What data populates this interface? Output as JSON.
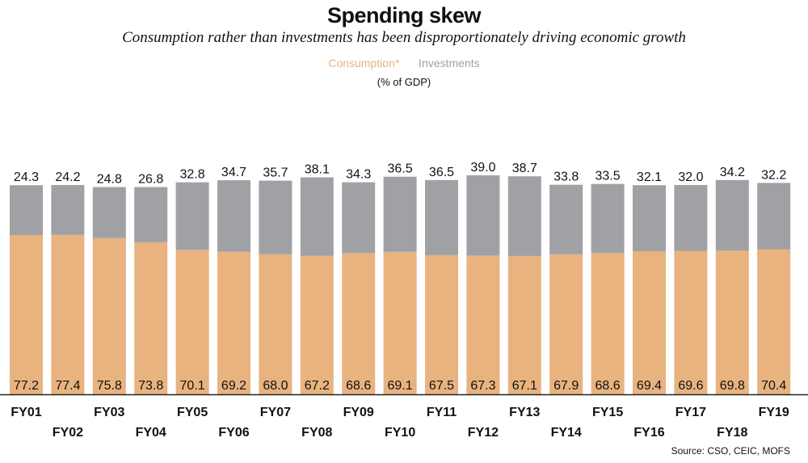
{
  "chart_data": {
    "type": "bar",
    "stacked": true,
    "title": "Spending skew",
    "subtitle": "Consumption rather than investments has been disproportionately driving economic growth",
    "unit_label": "(% of GDP)",
    "source": "Source: CSO, CEIC, MOFS",
    "legend_position": "top-center",
    "categories": [
      "FY01",
      "FY02",
      "FY03",
      "FY04",
      "FY05",
      "FY06",
      "FY07",
      "FY08",
      "FY09",
      "FY10",
      "FY11",
      "FY12",
      "FY13",
      "FY14",
      "FY15",
      "FY16",
      "FY17",
      "FY18",
      "FY19"
    ],
    "series": [
      {
        "name": "Consumption*",
        "color": "#e8b37f",
        "values": [
          77.2,
          77.4,
          75.8,
          73.8,
          70.1,
          69.2,
          68.0,
          67.2,
          68.6,
          69.1,
          67.5,
          67.3,
          67.1,
          67.9,
          68.6,
          69.4,
          69.6,
          69.8,
          70.4
        ]
      },
      {
        "name": "Investments",
        "color": "#a0a1a5",
        "values": [
          24.3,
          24.2,
          24.8,
          26.8,
          32.8,
          34.7,
          35.7,
          38.1,
          34.3,
          36.5,
          36.5,
          39.0,
          38.7,
          33.8,
          33.5,
          32.1,
          32.0,
          34.2,
          32.2
        ]
      }
    ],
    "grid": false
  }
}
